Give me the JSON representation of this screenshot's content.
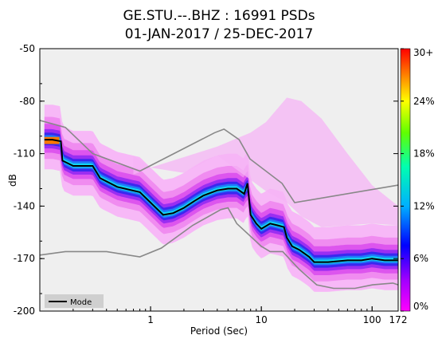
{
  "chart_data": {
    "type": "heatmap",
    "title_line1": "GE.STU.--.BHZ : 16991 PSDs",
    "title_line2": "01-JAN-2017 / 25-DEC-2017",
    "xlabel": "Period (Sec)",
    "ylabel": "dB",
    "x_scale": "log",
    "xlim": [
      0.1,
      172
    ],
    "ylim": [
      -200,
      -50
    ],
    "x_ticks": [
      {
        "value": 1,
        "label": "1"
      },
      {
        "value": 10,
        "label": "10"
      },
      {
        "value": 100,
        "label": "100"
      },
      {
        "value": 172,
        "label": "172"
      }
    ],
    "y_ticks": [
      {
        "value": -50,
        "label": "-50"
      },
      {
        "value": -80,
        "label": "-80"
      },
      {
        "value": -110,
        "label": "-110"
      },
      {
        "value": -140,
        "label": "-140"
      },
      {
        "value": -170,
        "label": "-170"
      },
      {
        "value": -200,
        "label": "-200"
      }
    ],
    "colorbar": {
      "ticks": [
        {
          "value": 0,
          "label": "0%"
        },
        {
          "value": 6,
          "label": "6%"
        },
        {
          "value": 12,
          "label": "12%"
        },
        {
          "value": 18,
          "label": "18%"
        },
        {
          "value": 24,
          "label": "24%"
        },
        {
          "value": 30,
          "label": "30+"
        }
      ],
      "range": [
        0,
        30
      ],
      "colors": [
        "#ff00ff",
        "#a000ff",
        "#0000ff",
        "#00b0ff",
        "#00ffb0",
        "#60ff00",
        "#ffff00",
        "#ff8000",
        "#ff0000"
      ]
    },
    "legend": {
      "label": "Mode",
      "position": "bottom-left"
    },
    "mode_curve": {
      "x": [
        0.11,
        0.13,
        0.155,
        0.16,
        0.2,
        0.3,
        0.35,
        0.5,
        0.8,
        1.0,
        1.3,
        1.6,
        2.0,
        2.5,
        3.0,
        4.0,
        5.0,
        6.0,
        7.0,
        7.5,
        8.0,
        9.0,
        10.0,
        12.0,
        14.0,
        16.0,
        17.0,
        19.0,
        22.0,
        27.0,
        30.0,
        40.0,
        60.0,
        80.0,
        100.0,
        130.0,
        172.0
      ],
      "y": [
        -102,
        -102,
        -103,
        -114,
        -117,
        -117,
        -124,
        -129,
        -132,
        -138,
        -145,
        -144,
        -141,
        -137,
        -134,
        -131,
        -130,
        -130,
        -133,
        -127,
        -145,
        -150,
        -153,
        -150,
        -151,
        -152,
        -158,
        -163,
        -165,
        -169,
        -172,
        -172,
        -171,
        -171,
        -170,
        -171,
        -171
      ]
    },
    "peterson_high": {
      "x": [
        0.1,
        0.17,
        0.3,
        0.8,
        3.8,
        4.6,
        6.3,
        7.9,
        15.4,
        20.0,
        172.0
      ],
      "y": [
        -91,
        -95,
        -110,
        -120,
        -98,
        -96,
        -102,
        -113,
        -127,
        -138,
        -128
      ]
    },
    "peterson_low": {
      "x": [
        0.1,
        0.17,
        0.4,
        0.8,
        1.25,
        2.4,
        4.3,
        5.0,
        6.0,
        10.0,
        12.0,
        15.6,
        21.9,
        31.6,
        45.0,
        70.0,
        101.0,
        154.0,
        172.0
      ],
      "y": [
        -168,
        -166,
        -166,
        -169,
        -164,
        -151,
        -142,
        -141,
        -150,
        -163,
        -166,
        -166,
        -176,
        -185,
        -187,
        -187,
        -185,
        -184,
        -185
      ]
    },
    "upper_fringe": {
      "x": [
        0.7,
        1.0,
        2.0,
        4.0,
        8.0,
        11.0,
        17.0,
        23.0,
        35.0,
        60.0,
        100.0,
        172.0
      ],
      "y": [
        -122,
        -118,
        -112,
        -106,
        -98,
        -92,
        -78,
        -80,
        -90,
        -110,
        -128,
        -140
      ]
    }
  }
}
